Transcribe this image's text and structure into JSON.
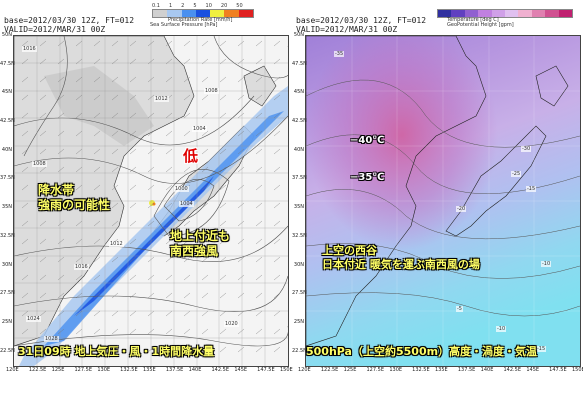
{
  "left_panel": {
    "base_line": "base=2012/03/30 12Z, FT=012",
    "valid_line": "VALID=2012/MAR/31 00Z",
    "legend_precip": {
      "title": "Precipitation Rate [mm/h]",
      "ticks": [
        "0.1",
        "1",
        "2",
        "5",
        "10",
        "20",
        "50"
      ],
      "colors": [
        "#d0d0d0",
        "#a8c8f0",
        "#4a90f0",
        "#1a50e0",
        "#f0f040",
        "#f08020",
        "#e02020"
      ]
    },
    "legend_pressure_title": "Sea Surface Pressure [hPa]",
    "y_ticks": [
      "50N",
      "47.5N",
      "45N",
      "42.5N",
      "40N",
      "37.5N",
      "35N",
      "32.5N",
      "30N",
      "27.5N",
      "25N",
      "22.5N"
    ],
    "x_ticks": [
      "120E",
      "122.5E",
      "125E",
      "127.5E",
      "130E",
      "132.5E",
      "135E",
      "137.5E",
      "140E",
      "142.5E",
      "145E",
      "147.5E",
      "150E"
    ],
    "isobar_labels": [
      "1016",
      "1012",
      "1008",
      "1004",
      "1000",
      "1004",
      "1008",
      "1012",
      "1016",
      "1020",
      "1024",
      "1028"
    ],
    "low_label": "低",
    "annotation_rain": [
      "降水帯",
      "強雨の可能性"
    ],
    "annotation_wind": [
      "地上付近も",
      "南西強風"
    ],
    "caption": "31日09時 地上気圧・風・1時間降水量"
  },
  "right_panel": {
    "base_line": "base=2012/03/30 12Z, FT=012",
    "valid_line": "VALID=2012/MAR/31 00Z",
    "legend_temp": {
      "title": "Temperature [deg C]",
      "colors": [
        "#3030a0",
        "#6040c0",
        "#9060d0",
        "#c080e0",
        "#d0a0e8",
        "#e0c0f0",
        "#f0b0d0",
        "#e080b0",
        "#d05090",
        "#c02070"
      ]
    },
    "legend_height_title": "GeoPotential Height [gpm]",
    "isoline_labels": [
      "-35",
      "-30",
      "-25",
      "-20",
      "-15",
      "-10",
      "-5",
      "-10",
      "-15"
    ],
    "temp_label_1": "−40℃",
    "temp_label_2": "−35℃",
    "annotation_trough": [
      "上空の西谷",
      "日本付近 暖気を運ぶ南西風の場"
    ],
    "caption": "500hPa（上空約5500m）高度・渦度・気温"
  }
}
